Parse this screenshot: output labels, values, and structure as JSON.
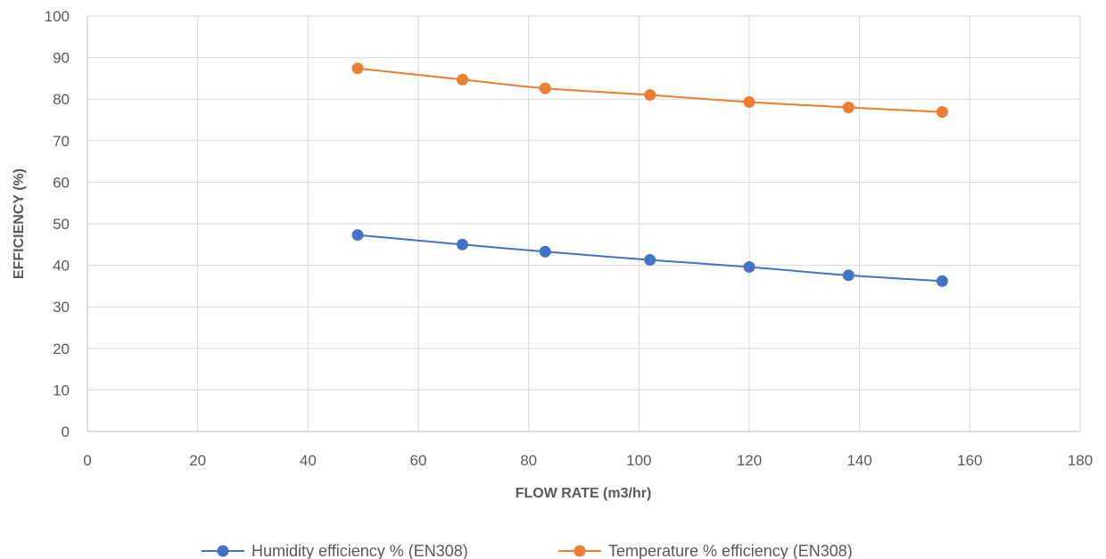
{
  "chart_data": {
    "type": "scatter",
    "xlabel": "FLOW RATE (m3/hr)",
    "ylabel": "EFFICIENCY (%)",
    "xlim": [
      0,
      180
    ],
    "ylim": [
      0,
      100
    ],
    "x_ticks": [
      0,
      20,
      40,
      60,
      80,
      100,
      120,
      140,
      160,
      180
    ],
    "y_ticks": [
      0,
      10,
      20,
      30,
      40,
      50,
      60,
      70,
      80,
      90,
      100
    ],
    "grid": true,
    "legend_position": "bottom",
    "series": [
      {
        "name": "Humidity efficiency % (EN308)",
        "color": "#4472c4",
        "x": [
          49,
          68,
          83,
          102,
          120,
          138,
          155
        ],
        "y": [
          47.3,
          45.0,
          43.3,
          41.3,
          39.6,
          37.6,
          36.2
        ]
      },
      {
        "name": "Temperature % efficiency (EN308)",
        "color": "#ed7d31",
        "x": [
          49,
          68,
          83,
          102,
          120,
          138,
          155
        ],
        "y": [
          87.4,
          84.7,
          82.6,
          81.0,
          79.3,
          78.0,
          76.9
        ]
      }
    ]
  }
}
